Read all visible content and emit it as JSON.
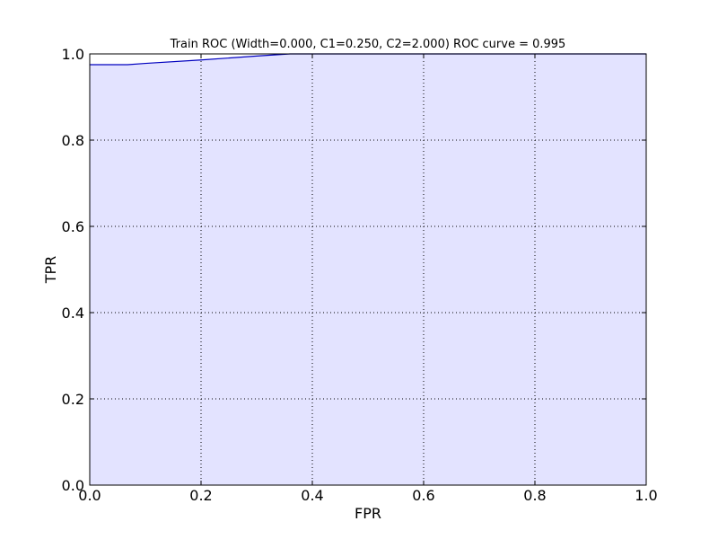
{
  "chart_data": {
    "type": "area",
    "title": "Train ROC (Width=0.000, C1=0.250, C2=2.000) ROC curve = 0.995",
    "xlabel": "FPR",
    "ylabel": "TPR",
    "xlim": [
      0.0,
      1.0
    ],
    "ylim": [
      0.0,
      1.0
    ],
    "xticks": [
      "0.0",
      "0.2",
      "0.4",
      "0.6",
      "0.8",
      "1.0"
    ],
    "yticks": [
      "0.0",
      "0.2",
      "0.4",
      "0.6",
      "0.8",
      "1.0"
    ],
    "grid": true,
    "series": [
      {
        "x": [
          0.0,
          0.068,
          0.1,
          0.2,
          0.3,
          0.36,
          0.4,
          0.6,
          0.8,
          1.0
        ],
        "y": [
          0.975,
          0.975,
          0.978,
          0.986,
          0.995,
          1.0,
          1.0,
          1.0,
          1.0,
          1.0
        ],
        "color": "#0000bf",
        "fill_color": "#e3e3ff"
      }
    ]
  }
}
